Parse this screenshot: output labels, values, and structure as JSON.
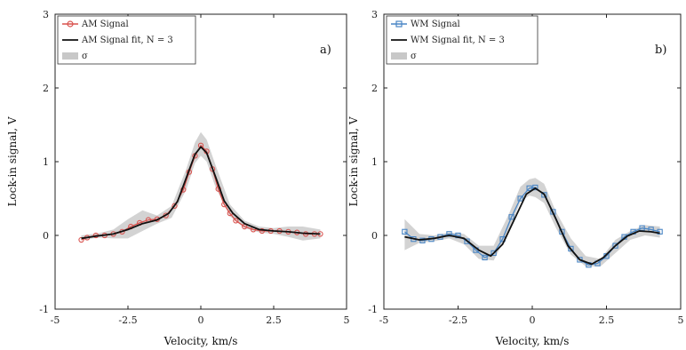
{
  "chart_data": [
    {
      "type": "line",
      "panel_label": "a)",
      "xlabel": "Velocity, km/s",
      "ylabel": "Lock-in signal, V",
      "xlim": [
        -5,
        5
      ],
      "ylim": [
        -1,
        3
      ],
      "xticks": [
        -5,
        -2.5,
        0,
        2.5,
        5
      ],
      "xtick_labels": [
        "-5",
        "-2.5",
        "0",
        "2.5",
        "5"
      ],
      "yticks": [
        -1,
        0,
        1,
        2,
        3
      ],
      "ytick_labels": [
        "-1",
        "0",
        "1",
        "2",
        "3"
      ],
      "grid": false,
      "legend_position": "top-left",
      "series": [
        {
          "name": "AM Signal",
          "color": "#d9534f",
          "marker": "circle-open",
          "x": [
            -4.1,
            -3.9,
            -3.6,
            -3.3,
            -3.0,
            -2.7,
            -2.4,
            -2.1,
            -1.8,
            -1.5,
            -1.2,
            -0.9,
            -0.6,
            -0.4,
            -0.2,
            0.0,
            0.2,
            0.4,
            0.6,
            0.8,
            1.0,
            1.2,
            1.5,
            1.8,
            2.1,
            2.4,
            2.7,
            3.0,
            3.3,
            3.6,
            3.9,
            4.1
          ],
          "y": [
            -0.06,
            -0.03,
            0.0,
            0.0,
            0.02,
            0.05,
            0.12,
            0.17,
            0.21,
            0.22,
            0.27,
            0.4,
            0.62,
            0.86,
            1.08,
            1.22,
            1.14,
            0.9,
            0.63,
            0.42,
            0.3,
            0.2,
            0.12,
            0.08,
            0.06,
            0.06,
            0.06,
            0.05,
            0.04,
            0.02,
            0.02,
            0.02
          ]
        },
        {
          "name": "AM Signal fit, N = 3",
          "color": "#111111",
          "x": [
            -4.1,
            -3.6,
            -3.0,
            -2.5,
            -2.0,
            -1.5,
            -1.1,
            -0.8,
            -0.5,
            -0.2,
            0.0,
            0.2,
            0.5,
            0.8,
            1.1,
            1.5,
            2.0,
            2.5,
            3.0,
            3.5,
            4.1
          ],
          "y": [
            -0.04,
            -0.01,
            0.02,
            0.08,
            0.16,
            0.21,
            0.3,
            0.46,
            0.78,
            1.1,
            1.2,
            1.12,
            0.8,
            0.47,
            0.3,
            0.16,
            0.08,
            0.06,
            0.05,
            0.03,
            0.02
          ]
        }
      ],
      "sigma_band": {
        "name": "σ",
        "color": "#c8c8c8",
        "x": [
          -4.1,
          -3.5,
          -3.0,
          -2.5,
          -2.0,
          -1.5,
          -1.0,
          -0.5,
          -0.2,
          0.0,
          0.2,
          0.5,
          1.0,
          1.5,
          2.0,
          2.5,
          3.0,
          3.5,
          4.1
        ],
        "lower": [
          -0.06,
          -0.03,
          -0.04,
          -0.04,
          0.06,
          0.16,
          0.24,
          0.62,
          0.98,
          1.08,
          1.0,
          0.66,
          0.26,
          0.1,
          0.04,
          0.02,
          -0.02,
          -0.07,
          -0.04
        ],
        "upper": [
          0.0,
          0.03,
          0.08,
          0.22,
          0.34,
          0.27,
          0.4,
          0.9,
          1.26,
          1.4,
          1.3,
          0.96,
          0.42,
          0.2,
          0.12,
          0.1,
          0.12,
          0.12,
          0.08
        ]
      }
    },
    {
      "type": "line",
      "panel_label": "b)",
      "xlabel": "Velocity, km/s",
      "ylabel": "Lock-in signal, V",
      "xlim": [
        -5,
        5
      ],
      "ylim": [
        -1,
        3
      ],
      "xticks": [
        -5,
        -2.5,
        0,
        2.5,
        5
      ],
      "xtick_labels": [
        "-5",
        "-2.5",
        "0",
        "2.5",
        "5"
      ],
      "yticks": [
        -1,
        0,
        1,
        2,
        3
      ],
      "ytick_labels": [
        "-1",
        "0",
        "1",
        "2",
        "3"
      ],
      "grid": false,
      "legend_position": "top-left",
      "series": [
        {
          "name": "WM Signal",
          "color": "#4a86c5",
          "marker": "square-open",
          "x": [
            -4.3,
            -4.0,
            -3.7,
            -3.4,
            -3.1,
            -2.8,
            -2.5,
            -2.2,
            -1.9,
            -1.6,
            -1.3,
            -1.0,
            -0.7,
            -0.4,
            -0.1,
            0.1,
            0.4,
            0.7,
            1.0,
            1.3,
            1.6,
            1.9,
            2.2,
            2.5,
            2.8,
            3.1,
            3.4,
            3.7,
            4.0,
            4.3
          ],
          "y": [
            0.05,
            -0.05,
            -0.07,
            -0.05,
            -0.02,
            0.02,
            0.0,
            -0.08,
            -0.2,
            -0.3,
            -0.24,
            -0.05,
            0.25,
            0.5,
            0.64,
            0.65,
            0.55,
            0.32,
            0.05,
            -0.18,
            -0.33,
            -0.4,
            -0.38,
            -0.28,
            -0.14,
            -0.02,
            0.05,
            0.1,
            0.08,
            0.05
          ]
        },
        {
          "name": "WM Signal fit, N = 3",
          "color": "#111111",
          "x": [
            -4.3,
            -3.8,
            -3.3,
            -2.8,
            -2.3,
            -1.8,
            -1.4,
            -1.0,
            -0.6,
            -0.2,
            0.1,
            0.4,
            0.8,
            1.2,
            1.6,
            2.0,
            2.4,
            2.8,
            3.2,
            3.6,
            4.0,
            4.3
          ],
          "y": [
            -0.02,
            -0.06,
            -0.04,
            0.0,
            -0.04,
            -0.2,
            -0.28,
            -0.12,
            0.22,
            0.56,
            0.64,
            0.56,
            0.22,
            -0.14,
            -0.33,
            -0.39,
            -0.3,
            -0.14,
            -0.01,
            0.06,
            0.05,
            0.03
          ]
        }
      ],
      "sigma_band": {
        "name": "σ",
        "color": "#c8c8c8",
        "x": [
          -4.3,
          -3.8,
          -3.3,
          -2.8,
          -2.3,
          -1.8,
          -1.3,
          -0.8,
          -0.4,
          -0.1,
          0.1,
          0.4,
          0.8,
          1.3,
          1.8,
          2.3,
          2.8,
          3.3,
          3.8,
          4.3
        ],
        "lower": [
          -0.2,
          -0.1,
          -0.08,
          -0.04,
          -0.12,
          -0.32,
          -0.34,
          0.05,
          0.46,
          0.54,
          0.52,
          0.44,
          0.1,
          -0.26,
          -0.42,
          -0.42,
          -0.24,
          -0.06,
          0.0,
          -0.03
        ],
        "upper": [
          0.22,
          0.02,
          0.0,
          0.04,
          0.02,
          -0.14,
          -0.14,
          0.28,
          0.66,
          0.76,
          0.78,
          0.7,
          0.32,
          -0.04,
          -0.28,
          -0.32,
          -0.06,
          0.06,
          0.14,
          0.12
        ]
      }
    }
  ]
}
